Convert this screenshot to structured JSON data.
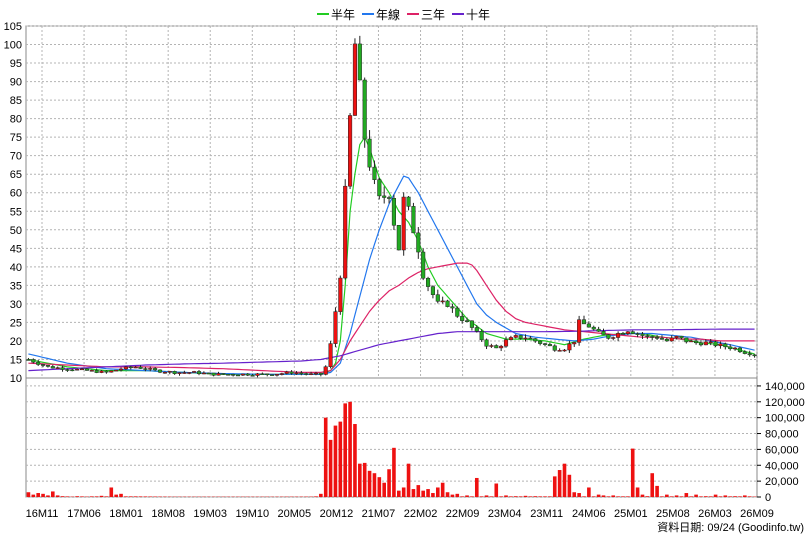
{
  "chart_data": {
    "type": "candlestick",
    "legend": [
      {
        "label": "半年",
        "color": "#22cc22"
      },
      {
        "label": "年線",
        "color": "#2277ee"
      },
      {
        "label": "三年",
        "color": "#dd2266"
      },
      {
        "label": "十年",
        "color": "#6622cc"
      }
    ],
    "price_axis": {
      "min": 10,
      "max": 105,
      "ticks": [
        "10",
        "15",
        "20",
        "25",
        "30",
        "35",
        "40",
        "45",
        "50",
        "55",
        "60",
        "65",
        "70",
        "75",
        "80",
        "85",
        "90",
        "95",
        "100",
        "105"
      ]
    },
    "volume_axis": {
      "min": 0,
      "max": 150000,
      "ticks": [
        "0",
        "20,000",
        "40,000",
        "60,000",
        "80,000",
        "100,000",
        "120,000",
        "140,000"
      ]
    },
    "x_labels": [
      "16M11",
      "17M06",
      "18M01",
      "18M08",
      "19M03",
      "19M10",
      "20M05",
      "20M12",
      "21M07",
      "22M02",
      "22M09",
      "23M04",
      "23M11",
      "24M06",
      "25M01",
      "25M08",
      "26M03",
      "26M09"
    ],
    "source": "資料日期: 09/24 (Goodinfo.tw)",
    "colors": {
      "up": "#ee1111",
      "down": "#22aa22",
      "volume": "#ee1111",
      "grid": "#b4b4b4"
    },
    "price_anchors": [
      [
        0,
        15
      ],
      [
        4,
        13
      ],
      [
        8,
        12.5
      ],
      [
        12,
        12
      ],
      [
        16,
        11.5
      ],
      [
        19,
        12.5
      ],
      [
        22,
        13
      ],
      [
        26,
        12
      ],
      [
        30,
        11.5
      ],
      [
        34,
        11.5
      ],
      [
        38,
        11
      ],
      [
        42,
        11
      ],
      [
        46,
        11
      ],
      [
        50,
        11
      ],
      [
        54,
        11.5
      ],
      [
        58,
        11
      ],
      [
        60,
        11
      ],
      [
        61,
        13
      ],
      [
        62,
        19
      ],
      [
        63,
        28
      ],
      [
        64,
        38
      ],
      [
        65,
        60
      ],
      [
        66,
        80
      ],
      [
        67,
        100
      ],
      [
        68,
        88
      ],
      [
        69,
        75
      ],
      [
        70,
        68
      ],
      [
        71,
        62
      ],
      [
        72,
        58
      ],
      [
        74,
        60
      ],
      [
        75,
        52
      ],
      [
        76,
        45
      ],
      [
        77,
        58
      ],
      [
        78,
        55
      ],
      [
        79,
        50
      ],
      [
        80,
        45
      ],
      [
        81,
        38
      ],
      [
        82,
        35
      ],
      [
        84,
        30
      ],
      [
        86,
        30
      ],
      [
        88,
        27
      ],
      [
        90,
        25
      ],
      [
        92,
        22
      ],
      [
        94,
        19
      ],
      [
        96,
        18
      ],
      [
        98,
        20
      ],
      [
        100,
        21
      ],
      [
        102,
        21
      ],
      [
        104,
        20
      ],
      [
        106,
        19
      ],
      [
        108,
        18
      ],
      [
        110,
        18
      ],
      [
        112,
        20
      ],
      [
        113,
        25
      ],
      [
        115,
        24
      ],
      [
        117,
        22
      ],
      [
        119,
        21
      ],
      [
        121,
        22
      ],
      [
        123,
        23
      ],
      [
        125,
        22
      ],
      [
        127,
        21
      ],
      [
        129,
        21
      ],
      [
        131,
        20
      ],
      [
        133,
        21
      ],
      [
        135,
        20
      ],
      [
        137,
        19.5
      ],
      [
        139,
        19.5
      ],
      [
        141,
        19
      ],
      [
        143,
        18.5
      ],
      [
        145,
        18
      ],
      [
        147,
        17
      ],
      [
        149,
        16.5
      ]
    ],
    "half_year_ma": [
      [
        0,
        15
      ],
      [
        8,
        13
      ],
      [
        16,
        12
      ],
      [
        24,
        12
      ],
      [
        32,
        11.5
      ],
      [
        40,
        11
      ],
      [
        48,
        11
      ],
      [
        56,
        11
      ],
      [
        60,
        11
      ],
      [
        62,
        12
      ],
      [
        63,
        14
      ],
      [
        64,
        20
      ],
      [
        65,
        35
      ],
      [
        66,
        55
      ],
      [
        67,
        65
      ],
      [
        68,
        73
      ],
      [
        69,
        75
      ],
      [
        70,
        72
      ],
      [
        71,
        68
      ],
      [
        72,
        64
      ],
      [
        74,
        60
      ],
      [
        76,
        55
      ],
      [
        78,
        52
      ],
      [
        80,
        47
      ],
      [
        82,
        40
      ],
      [
        84,
        35
      ],
      [
        86,
        32
      ],
      [
        88,
        29
      ],
      [
        90,
        26
      ],
      [
        92,
        24
      ],
      [
        94,
        22
      ],
      [
        98,
        20.5
      ],
      [
        102,
        20.5
      ],
      [
        106,
        20
      ],
      [
        110,
        19
      ],
      [
        114,
        20.5
      ],
      [
        118,
        21.5
      ],
      [
        122,
        22
      ],
      [
        126,
        22
      ],
      [
        130,
        21
      ],
      [
        134,
        20.5
      ],
      [
        138,
        19.5
      ],
      [
        142,
        19
      ],
      [
        146,
        17.5
      ],
      [
        149,
        16.5
      ]
    ],
    "year_ma": [
      [
        0,
        16.5
      ],
      [
        8,
        14
      ],
      [
        16,
        12.5
      ],
      [
        24,
        12
      ],
      [
        32,
        11.5
      ],
      [
        40,
        11.2
      ],
      [
        48,
        11
      ],
      [
        56,
        11
      ],
      [
        60,
        11
      ],
      [
        62,
        11.5
      ],
      [
        64,
        14
      ],
      [
        66,
        22
      ],
      [
        68,
        32
      ],
      [
        70,
        42
      ],
      [
        72,
        50
      ],
      [
        74,
        57
      ],
      [
        76,
        62
      ],
      [
        77,
        64.5
      ],
      [
        78,
        64
      ],
      [
        80,
        60
      ],
      [
        82,
        55
      ],
      [
        84,
        50
      ],
      [
        86,
        45
      ],
      [
        88,
        40
      ],
      [
        90,
        35
      ],
      [
        92,
        30
      ],
      [
        94,
        27
      ],
      [
        96,
        25
      ],
      [
        100,
        22
      ],
      [
        104,
        21
      ],
      [
        108,
        20.5
      ],
      [
        112,
        20
      ],
      [
        116,
        20.5
      ],
      [
        120,
        21.5
      ],
      [
        124,
        22
      ],
      [
        128,
        22
      ],
      [
        132,
        21.5
      ],
      [
        136,
        21
      ],
      [
        140,
        20
      ],
      [
        144,
        19
      ],
      [
        149,
        17.5
      ]
    ],
    "three_year_ma": [
      [
        0,
        14
      ],
      [
        8,
        13.5
      ],
      [
        16,
        13
      ],
      [
        24,
        13
      ],
      [
        32,
        12.8
      ],
      [
        40,
        12.5
      ],
      [
        48,
        12
      ],
      [
        56,
        11.5
      ],
      [
        60,
        11.5
      ],
      [
        62,
        12
      ],
      [
        64,
        15
      ],
      [
        66,
        20
      ],
      [
        68,
        24
      ],
      [
        70,
        28
      ],
      [
        72,
        31
      ],
      [
        74,
        33.5
      ],
      [
        76,
        35
      ],
      [
        78,
        37
      ],
      [
        80,
        38.5
      ],
      [
        82,
        39.5
      ],
      [
        84,
        40
      ],
      [
        86,
        40.5
      ],
      [
        88,
        41
      ],
      [
        90,
        41
      ],
      [
        91,
        40.5
      ],
      [
        92,
        39
      ],
      [
        94,
        35
      ],
      [
        96,
        31
      ],
      [
        98,
        28
      ],
      [
        100,
        26
      ],
      [
        102,
        25
      ],
      [
        104,
        24.5
      ],
      [
        106,
        24
      ],
      [
        110,
        23
      ],
      [
        114,
        22.5
      ],
      [
        118,
        22
      ],
      [
        122,
        21.5
      ],
      [
        126,
        21
      ],
      [
        130,
        21
      ],
      [
        134,
        20.5
      ],
      [
        138,
        20.5
      ],
      [
        142,
        20
      ],
      [
        146,
        20
      ],
      [
        149,
        20
      ]
    ],
    "ten_year_ma": [
      [
        0,
        12
      ],
      [
        8,
        12.5
      ],
      [
        16,
        13
      ],
      [
        24,
        13.5
      ],
      [
        32,
        13.8
      ],
      [
        40,
        14
      ],
      [
        48,
        14.3
      ],
      [
        56,
        14.6
      ],
      [
        60,
        15
      ],
      [
        64,
        16
      ],
      [
        68,
        17.5
      ],
      [
        72,
        19
      ],
      [
        76,
        20
      ],
      [
        80,
        21
      ],
      [
        84,
        22
      ],
      [
        88,
        22.5
      ],
      [
        94,
        22.5
      ],
      [
        100,
        22.5
      ],
      [
        106,
        22.5
      ],
      [
        112,
        22.6
      ],
      [
        118,
        22.8
      ],
      [
        124,
        23
      ],
      [
        130,
        23
      ],
      [
        136,
        23.1
      ],
      [
        142,
        23.2
      ],
      [
        149,
        23.2
      ]
    ],
    "volume_anchors": [
      [
        0,
        6000
      ],
      [
        1,
        3000
      ],
      [
        2,
        5000
      ],
      [
        3,
        4000
      ],
      [
        4,
        2000
      ],
      [
        5,
        7000
      ],
      [
        6,
        2000
      ],
      [
        7,
        1000
      ],
      [
        9,
        500
      ],
      [
        10,
        1000
      ],
      [
        12,
        500
      ],
      [
        15,
        1500
      ],
      [
        17,
        12000
      ],
      [
        18,
        3000
      ],
      [
        19,
        4000
      ],
      [
        22,
        800
      ],
      [
        30,
        400
      ],
      [
        40,
        400
      ],
      [
        50,
        400
      ],
      [
        58,
        500
      ],
      [
        60,
        4000
      ],
      [
        61,
        100000
      ],
      [
        62,
        72000
      ],
      [
        63,
        90000
      ],
      [
        64,
        95000
      ],
      [
        65,
        118000
      ],
      [
        66,
        120000
      ],
      [
        67,
        92000
      ],
      [
        68,
        42000
      ],
      [
        69,
        43000
      ],
      [
        70,
        33000
      ],
      [
        71,
        30000
      ],
      [
        72,
        25000
      ],
      [
        73,
        18000
      ],
      [
        74,
        35000
      ],
      [
        75,
        62000
      ],
      [
        76,
        8000
      ],
      [
        77,
        12000
      ],
      [
        78,
        42000
      ],
      [
        79,
        10000
      ],
      [
        80,
        15000
      ],
      [
        81,
        8000
      ],
      [
        82,
        10000
      ],
      [
        83,
        5000
      ],
      [
        84,
        12000
      ],
      [
        85,
        18000
      ],
      [
        86,
        6000
      ],
      [
        87,
        3000
      ],
      [
        88,
        4000
      ],
      [
        90,
        2000
      ],
      [
        92,
        24000
      ],
      [
        94,
        2000
      ],
      [
        96,
        17000
      ],
      [
        98,
        2000
      ],
      [
        100,
        1000
      ],
      [
        102,
        1500
      ],
      [
        104,
        1000
      ],
      [
        106,
        800
      ],
      [
        108,
        26000
      ],
      [
        109,
        34000
      ],
      [
        110,
        42000
      ],
      [
        111,
        28000
      ],
      [
        112,
        6000
      ],
      [
        113,
        5000
      ],
      [
        115,
        12000
      ],
      [
        117,
        3000
      ],
      [
        118,
        2000
      ],
      [
        120,
        2000
      ],
      [
        122,
        800
      ],
      [
        124,
        61000
      ],
      [
        125,
        12000
      ],
      [
        126,
        3000
      ],
      [
        127,
        1000
      ],
      [
        128,
        30000
      ],
      [
        129,
        14000
      ],
      [
        131,
        3000
      ],
      [
        133,
        2000
      ],
      [
        135,
        5000
      ],
      [
        137,
        3000
      ],
      [
        139,
        1000
      ],
      [
        141,
        3000
      ],
      [
        143,
        2000
      ],
      [
        145,
        1000
      ],
      [
        147,
        2000
      ],
      [
        149,
        500
      ]
    ]
  }
}
